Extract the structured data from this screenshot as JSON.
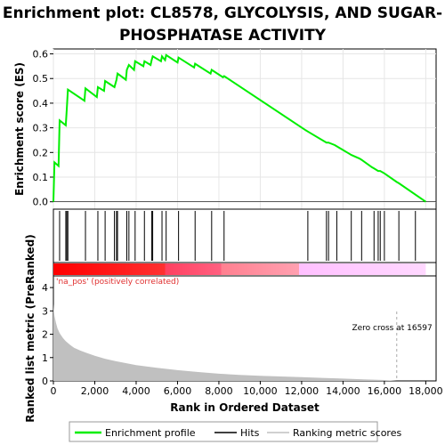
{
  "chart_data": {
    "type": "line",
    "title": "Enrichment plot: CL8578, GLYCOLYSIS, AND SUGAR-PHOSPHATASE ACTIVITY",
    "title_lines": [
      "Enrichment plot: CL8578, GLYCOLYSIS, AND SUGAR-",
      "PHOSPHATASE ACTIVITY"
    ],
    "colors": {
      "profile": "#00ee00",
      "hits": "#000000",
      "metric": "#c0c0c0",
      "pos_band": "#ff0000",
      "neg_band": "#ffb6ff",
      "zero_cross": "#aaaaaa",
      "pos_label": "#e03030"
    },
    "es_panel": {
      "ylabel": "Enrichment score (ES)",
      "ylim": [
        -0.03,
        0.62
      ],
      "yticks": [
        0.0,
        0.1,
        0.2,
        0.3,
        0.4,
        0.5,
        0.6
      ],
      "ytick_labels": [
        "0.0",
        "0.1",
        "0.2",
        "0.3",
        "0.4",
        "0.5",
        "0.6"
      ],
      "grid": true,
      "series": [
        {
          "name": "Enrichment profile",
          "x": [
            0,
            50,
            250,
            300,
            600,
            650,
            700,
            1500,
            1550,
            2100,
            2150,
            2450,
            2500,
            2950,
            3050,
            3100,
            3500,
            3550,
            3650,
            3900,
            3950,
            4350,
            4400,
            4700,
            4750,
            4800,
            5200,
            5250,
            5400,
            5450,
            6000,
            6050,
            6800,
            6850,
            7600,
            7650,
            8200,
            8250,
            12200,
            12300,
            13200,
            13300,
            13600,
            13700,
            14300,
            14400,
            14800,
            14900,
            15400,
            15500,
            15700,
            15800,
            16000,
            16600,
            16700,
            18000
          ],
          "y": [
            0.0,
            0.16,
            0.145,
            0.33,
            0.31,
            0.38,
            0.455,
            0.41,
            0.46,
            0.425,
            0.465,
            0.45,
            0.49,
            0.465,
            0.495,
            0.52,
            0.495,
            0.535,
            0.555,
            0.535,
            0.57,
            0.55,
            0.57,
            0.555,
            0.575,
            0.59,
            0.57,
            0.59,
            0.575,
            0.595,
            0.565,
            0.585,
            0.545,
            0.56,
            0.52,
            0.535,
            0.505,
            0.51,
            0.29,
            0.285,
            0.24,
            0.24,
            0.23,
            0.225,
            0.195,
            0.19,
            0.175,
            0.17,
            0.14,
            0.135,
            0.125,
            0.125,
            0.115,
            0.08,
            0.075,
            0.0
          ]
        }
      ]
    },
    "hits": [
      300,
      600,
      650,
      700,
      1550,
      2150,
      2500,
      2950,
      3050,
      3100,
      3550,
      3650,
      3950,
      4400,
      4750,
      4800,
      5250,
      5450,
      6050,
      6850,
      7650,
      8250,
      12300,
      13200,
      13300,
      13700,
      14400,
      14900,
      15500,
      15700,
      15800,
      16000,
      16700,
      17500
    ],
    "band_annotation": "'na_pos' (positively correlated)",
    "metric_panel": {
      "ylabel": "Ranked list metric (PreRanked)",
      "ylim": [
        0,
        4.5
      ],
      "yticks": [
        0,
        1,
        2,
        3,
        4
      ],
      "ytick_labels": [
        "0",
        "1",
        "2",
        "3",
        "4"
      ],
      "zero_cross_label": "Zero cross at 16597",
      "zero_cross_x": 16597,
      "x": [
        0,
        20,
        60,
        120,
        200,
        300,
        450,
        600,
        800,
        1000,
        1300,
        1600,
        2000,
        2500,
        3000,
        4000,
        5000,
        6000,
        7000,
        8000,
        9000,
        10000,
        11000,
        12000,
        13000,
        14000,
        15000,
        16000,
        16597
      ],
      "values": [
        3.3,
        3.0,
        2.75,
        2.5,
        2.25,
        2.05,
        1.85,
        1.7,
        1.55,
        1.42,
        1.3,
        1.2,
        1.08,
        0.95,
        0.85,
        0.68,
        0.56,
        0.46,
        0.38,
        0.31,
        0.26,
        0.22,
        0.19,
        0.16,
        0.13,
        0.1,
        0.07,
        0.04,
        0.0
      ]
    },
    "xaxis": {
      "xlabel": "Rank in Ordered Dataset",
      "xlim": [
        0,
        18500
      ],
      "xticks": [
        0,
        2000,
        4000,
        6000,
        8000,
        10000,
        12000,
        14000,
        16000,
        18000
      ],
      "xtick_labels": [
        "0",
        "2,000",
        "4,000",
        "6,000",
        "8,000",
        "10,000",
        "12,000",
        "14,000",
        "16,000",
        "18,000"
      ],
      "n_genes": 18000
    },
    "legend": {
      "placement": "bottom",
      "entries": [
        {
          "label": "Enrichment profile",
          "swatch": "green-line"
        },
        {
          "label": "Hits",
          "swatch": "black-line"
        },
        {
          "label": "Ranking metric scores",
          "swatch": "gray-line"
        }
      ]
    }
  }
}
